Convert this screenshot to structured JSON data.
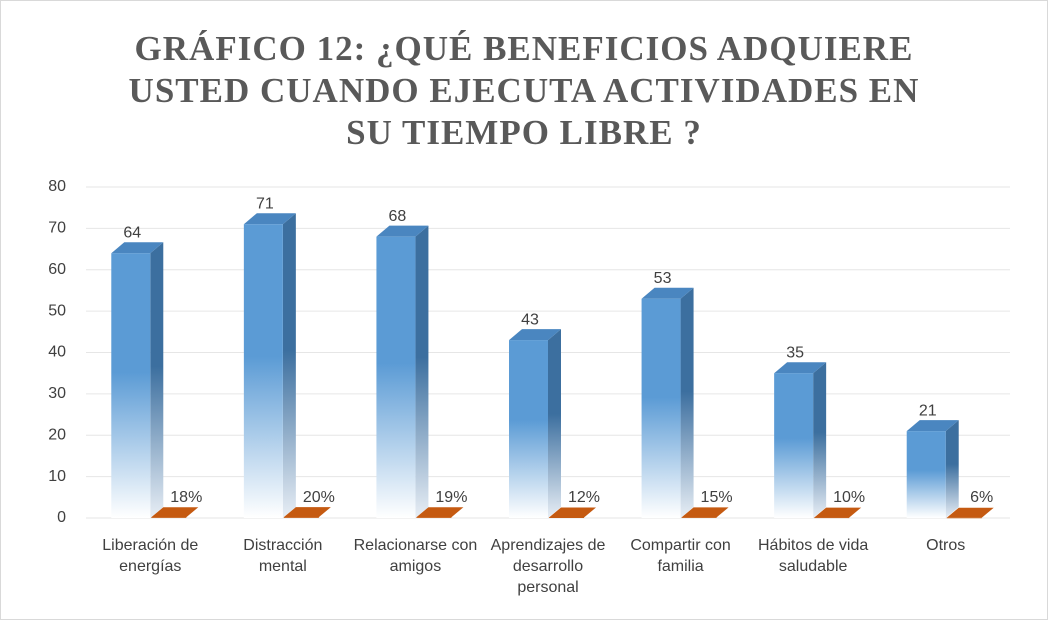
{
  "chart_data": {
    "type": "bar3d",
    "title": "GRÁFICO 12: ¿QUÉ BENEFICIOS ADQUIERE USTED CUANDO EJECUTA ACTIVIDADES EN SU TIEMPO LIBRE ?",
    "categories": [
      "Liberación de energías",
      "Distracción mental",
      "Relacionarse con amigos",
      "Aprendizajes de desarrollo personal",
      "Compartir con familia",
      "Hábitos de vida saludable",
      "Otros"
    ],
    "series": [
      {
        "color": "#5b9bd5",
        "values": [
          64,
          71,
          68,
          43,
          53,
          35,
          21
        ]
      },
      {
        "color": "#c55a11",
        "values": [
          0.18,
          0.2,
          0.19,
          0.12,
          0.15,
          0.1,
          0.06
        ],
        "value_labels": [
          "18%",
          "20%",
          "19%",
          "12%",
          "15%",
          "10%",
          "6%"
        ]
      }
    ],
    "ylim": [
      0,
      80
    ],
    "yticks": [
      0,
      10,
      20,
      30,
      40,
      50,
      60,
      70,
      80
    ],
    "grid": true
  }
}
